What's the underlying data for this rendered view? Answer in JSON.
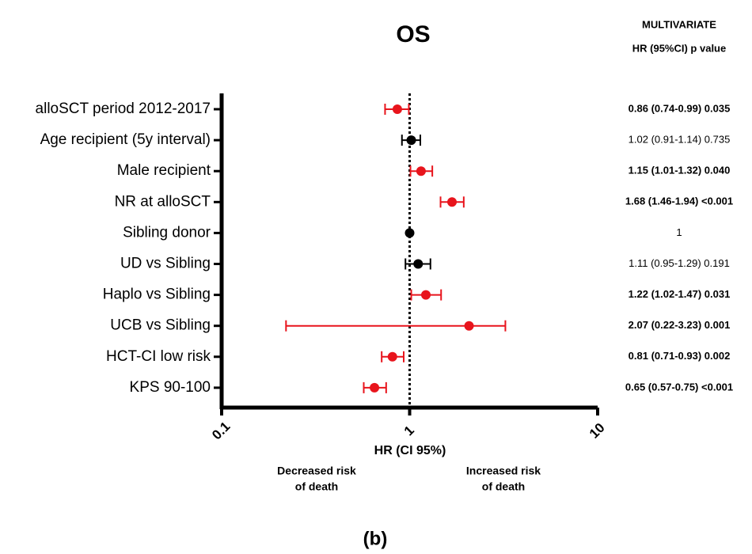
{
  "chart_data": {
    "type": "forest",
    "title": "OS",
    "table_header": [
      "MULTIVARIATE",
      "HR (95%CI) p value"
    ],
    "categories": [
      "alloSCT period 2012-2017",
      "Age recipient (5y interval)",
      "Male recipient",
      "NR at alloSCT",
      "Sibling donor",
      "UD vs Sibling",
      "Haplo vs Sibling",
      "UCB vs Sibling",
      "HCT-CI low risk",
      "KPS 90-100"
    ],
    "values": [
      0.86,
      1.02,
      1.15,
      1.68,
      1,
      1.11,
      1.22,
      2.07,
      0.81,
      0.65
    ],
    "lower": [
      0.74,
      0.91,
      1.01,
      1.46,
      null,
      0.95,
      1.02,
      0.22,
      0.71,
      0.57
    ],
    "upper": [
      0.99,
      1.14,
      1.32,
      1.94,
      null,
      1.29,
      1.47,
      3.23,
      0.93,
      0.75
    ],
    "value_labels": [
      "0.86 (0.74-0.99) 0.035",
      "1.02 (0.91-1.14) 0.735",
      "1.15 (1.01-1.32) 0.040",
      "1.68 (1.46-1.94) <0.001",
      "1",
      "1.11 (0.95-1.29) 0.191",
      "1.22 (1.02-1.47) 0.031",
      "2.07 (0.22-3.23) 0.001",
      "0.81 (0.71-0.93) 0.002",
      "0.65 (0.57-0.75) <0.001"
    ],
    "label_bold": [
      true,
      false,
      true,
      true,
      false,
      false,
      true,
      true,
      true,
      true
    ],
    "colors": [
      "#e8141c",
      "#000000",
      "#e8141c",
      "#e8141c",
      "#000000",
      "#000000",
      "#e8141c",
      "#e8141c",
      "#e8141c",
      "#e8141c"
    ],
    "xlim": [
      0.1,
      10
    ],
    "xticks": [
      0.1,
      1,
      10
    ],
    "log_x": true,
    "xlabel": "HR (CI 95%)",
    "reference_line": 1,
    "annotations": [
      [
        "Decreased risk",
        "of death"
      ],
      [
        "Increased risk",
        "of death"
      ]
    ],
    "caption": "(b)"
  }
}
